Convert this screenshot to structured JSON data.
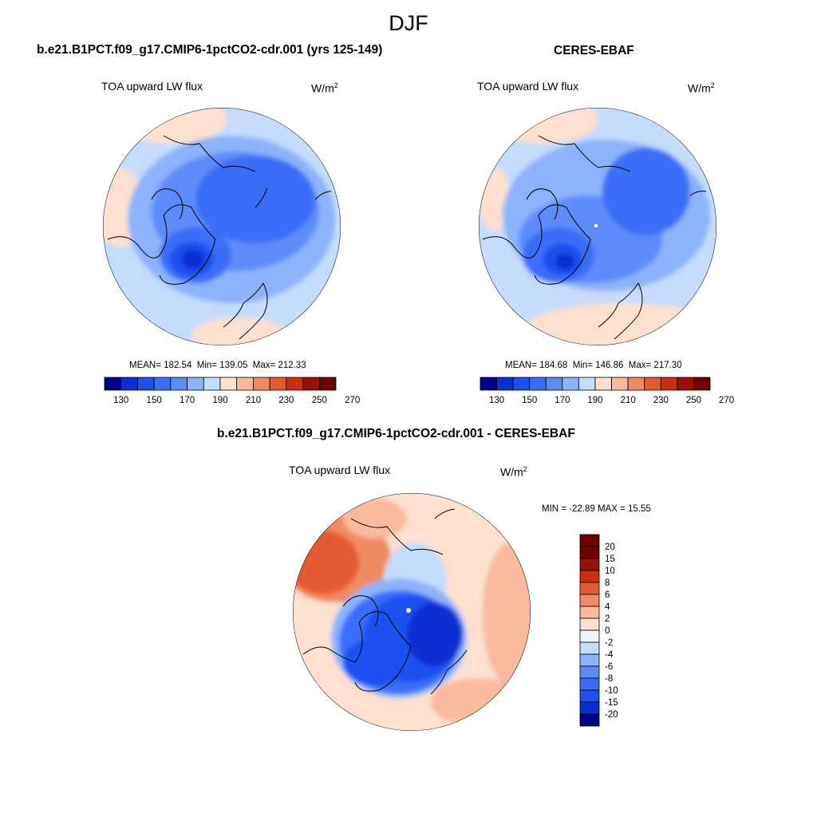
{
  "main_title": "DJF",
  "colors": {
    "levels_12": [
      "#00008f",
      "#0a2ed2",
      "#1f4ff0",
      "#3b6ef8",
      "#5d8cfa",
      "#8cb3fb",
      "#c5dcfd",
      "#fde0cf",
      "#f9ba9d",
      "#f08a62",
      "#e45a32",
      "#cc2e0f",
      "#980f03",
      "#6f0000"
    ],
    "levels_diff": [
      "#00008f",
      "#0a2ed2",
      "#1f4ff0",
      "#3b6ef8",
      "#5d8cfa",
      "#8cb3fb",
      "#c5dcfd",
      "#eef4fd",
      "#fde0cf",
      "#f9ba9d",
      "#f08a62",
      "#e45a32",
      "#cc2e0f",
      "#980f03",
      "#6f0000"
    ]
  },
  "panels": [
    {
      "title": "b.e21.B1PCT.f09_g17.CMIP6-1pctCO2-cdr.001 (yrs 125-149)",
      "variable": "TOA upward LW flux",
      "units": "W/m",
      "units_sup": "2",
      "mean_label": "MEAN=",
      "mean": "182.54",
      "min_label": "Min=",
      "min": "139.05",
      "max_label": "Max=",
      "max": "212.33",
      "colorbar_ticks": [
        "130",
        "150",
        "170",
        "190",
        "210",
        "230",
        "250",
        "270"
      ]
    },
    {
      "title": "CERES-EBAF",
      "variable": "TOA upward LW flux",
      "units": "W/m",
      "units_sup": "2",
      "mean_label": "MEAN=",
      "mean": "184.68",
      "min_label": "Min=",
      "min": "146.86",
      "max_label": "Max=",
      "max": "217.30",
      "colorbar_ticks": [
        "130",
        "150",
        "170",
        "190",
        "210",
        "230",
        "250",
        "270"
      ]
    },
    {
      "title": "b.e21.B1PCT.f09_g17.CMIP6-1pctCO2-cdr.001 - CERES-EBAF",
      "variable": "TOA upward LW flux",
      "units": "W/m",
      "units_sup": "2",
      "minmax_label": "MIN = -22.89 MAX =  15.55",
      "colorbar_ticks": [
        "20",
        "15",
        "10",
        "8",
        "6",
        "4",
        "2",
        "0",
        "-2",
        "-4",
        "-6",
        "-8",
        "-10",
        "-15",
        "-20"
      ]
    }
  ]
}
